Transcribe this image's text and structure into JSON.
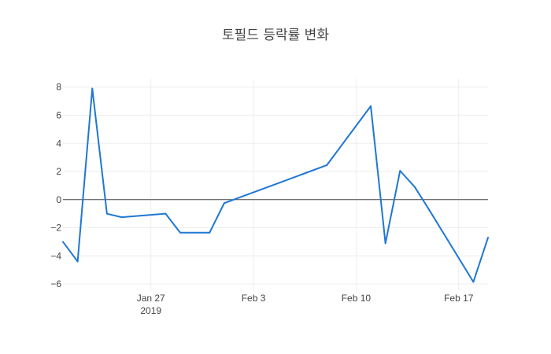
{
  "chart_data": {
    "type": "line",
    "title": "토필드 등락률 변화",
    "xlabel": "",
    "ylabel": "",
    "x_axis": {
      "type": "date",
      "range": [
        "2019-01-21",
        "2019-02-19"
      ],
      "ticks": [
        {
          "date": "2019-01-27",
          "label": "Jan 27",
          "sublabel": "2019"
        },
        {
          "date": "2019-02-03",
          "label": "Feb 3",
          "sublabel": ""
        },
        {
          "date": "2019-02-10",
          "label": "Feb 10",
          "sublabel": ""
        },
        {
          "date": "2019-02-17",
          "label": "Feb 17",
          "sublabel": ""
        }
      ]
    },
    "y_axis": {
      "range": [
        -6.5,
        8.6
      ],
      "ticks": [
        {
          "value": 8,
          "label": "8"
        },
        {
          "value": 6,
          "label": "6"
        },
        {
          "value": 4,
          "label": "4"
        },
        {
          "value": 2,
          "label": "2"
        },
        {
          "value": 0,
          "label": "0"
        },
        {
          "value": -2,
          "label": "−2"
        },
        {
          "value": -4,
          "label": "−4"
        },
        {
          "value": -6,
          "label": "−6"
        }
      ]
    },
    "grid": true,
    "zero_line": true,
    "series": [
      {
        "color": "#1f77d4",
        "points": [
          {
            "x": "2019-01-21",
            "y": -3.0
          },
          {
            "x": "2019-01-22",
            "y": -4.4
          },
          {
            "x": "2019-01-23",
            "y": 7.9
          },
          {
            "x": "2019-01-24",
            "y": -1.0
          },
          {
            "x": "2019-01-25",
            "y": -1.25
          },
          {
            "x": "2019-01-28",
            "y": -1.0
          },
          {
            "x": "2019-01-29",
            "y": -2.35
          },
          {
            "x": "2019-01-31",
            "y": -2.35
          },
          {
            "x": "2019-02-01",
            "y": -0.25
          },
          {
            "x": "2019-02-08",
            "y": 2.45
          },
          {
            "x": "2019-02-11",
            "y": 6.65
          },
          {
            "x": "2019-02-12",
            "y": -3.1
          },
          {
            "x": "2019-02-13",
            "y": 2.05
          },
          {
            "x": "2019-02-14",
            "y": 0.9
          },
          {
            "x": "2019-02-15",
            "y": -0.75
          },
          {
            "x": "2019-02-18",
            "y": -5.85
          },
          {
            "x": "2019-02-19",
            "y": -2.7
          }
        ]
      }
    ]
  }
}
